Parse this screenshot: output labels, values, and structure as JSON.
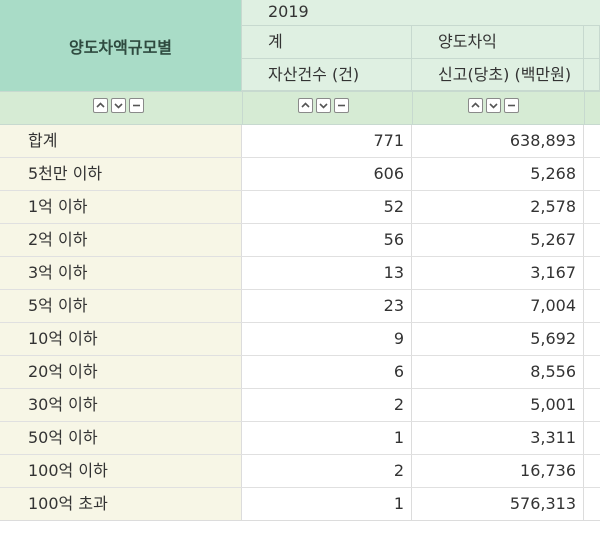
{
  "header": {
    "row_header_title": "양도차액규모별",
    "year": "2019",
    "col_group_1": "계",
    "col_group_2": "양도차익",
    "col_1_label": "자산건수 (건)",
    "col_2_label": "신고(당초) (백만원)"
  },
  "sort_icons": [
    "sort-ascending-icon",
    "sort-descending-icon",
    "sort-reset-icon"
  ],
  "rows": [
    {
      "label": "합계",
      "count": "771",
      "amount": "638,893"
    },
    {
      "label": "5천만 이하",
      "count": "606",
      "amount": "5,268"
    },
    {
      "label": "1억 이하",
      "count": "52",
      "amount": "2,578"
    },
    {
      "label": "2억 이하",
      "count": "56",
      "amount": "5,267"
    },
    {
      "label": "3억 이하",
      "count": "13",
      "amount": "3,167"
    },
    {
      "label": "5억 이하",
      "count": "23",
      "amount": "7,004"
    },
    {
      "label": "10억 이하",
      "count": "9",
      "amount": "5,692"
    },
    {
      "label": "20억 이하",
      "count": "6",
      "amount": "8,556"
    },
    {
      "label": "30억 이하",
      "count": "2",
      "amount": "5,001"
    },
    {
      "label": "50억 이하",
      "count": "1",
      "amount": "3,311"
    },
    {
      "label": "100억 이하",
      "count": "2",
      "amount": "16,736"
    },
    {
      "label": "100억 초과",
      "count": "1",
      "amount": "576,313"
    }
  ]
}
